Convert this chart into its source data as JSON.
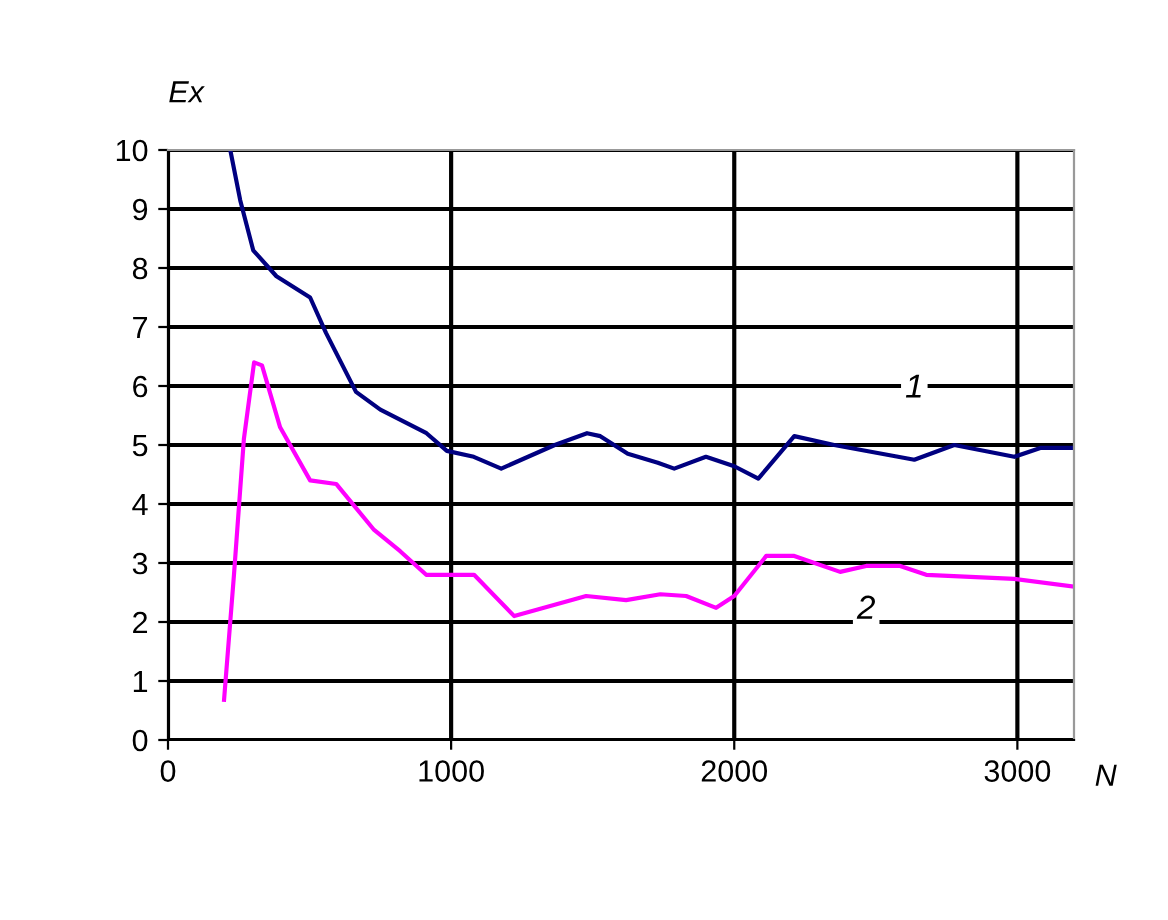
{
  "chart_data": {
    "type": "line",
    "xlabel": "N",
    "ylabel": "Ex",
    "xlim": [
      0,
      3200
    ],
    "xticks": [
      0,
      1000,
      2000,
      3000
    ],
    "ylim": [
      0,
      10
    ],
    "yticks": [
      0,
      1,
      2,
      3,
      4,
      5,
      6,
      7,
      8,
      9,
      10
    ],
    "grid": true,
    "legend": false,
    "marker": "none",
    "line_style": "solid",
    "series": [
      {
        "name": "1",
        "color": "#000080",
        "x": [
          220,
          255,
          301,
          383,
          502,
          558,
          664,
          750,
          913,
          985,
          1080,
          1177,
          1366,
          1480,
          1527,
          1624,
          1730,
          1788,
          1900,
          2000,
          2085,
          2212,
          2353,
          2636,
          2777,
          2989,
          3081,
          3200
        ],
        "values": [
          10,
          9.15,
          8.3,
          7.86,
          7.5,
          6.9,
          5.9,
          5.6,
          5.2,
          4.9,
          4.8,
          4.6,
          5.0,
          5.2,
          5.15,
          4.85,
          4.7,
          4.6,
          4.8,
          4.64,
          4.43,
          5.15,
          5.0,
          4.75,
          5.0,
          4.8,
          4.95,
          4.95
        ]
      },
      {
        "name": "2",
        "color": "#ff00ff",
        "x": [
          198,
          233,
          268,
          304,
          332,
          396,
          502,
          594,
          728,
          820,
          912,
          1081,
          1223,
          1477,
          1618,
          1739,
          1830,
          1936,
          2000,
          2113,
          2212,
          2374,
          2466,
          2586,
          2678,
          2989,
          3200
        ],
        "values": [
          0.68,
          2.8,
          5.1,
          6.4,
          6.35,
          5.3,
          4.4,
          4.34,
          3.56,
          3.2,
          2.8,
          2.8,
          2.1,
          2.44,
          2.37,
          2.47,
          2.44,
          2.24,
          2.44,
          3.12,
          3.12,
          2.85,
          2.95,
          2.95,
          2.8,
          2.73,
          2.6
        ]
      }
    ]
  }
}
